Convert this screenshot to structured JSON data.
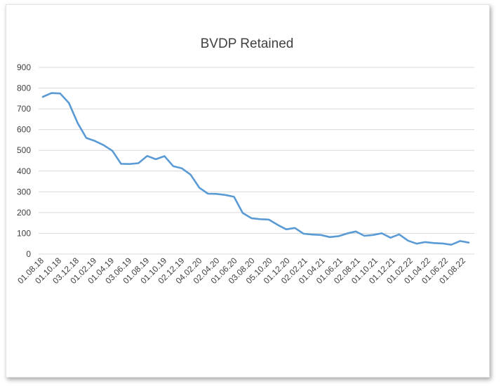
{
  "chart_data": {
    "type": "line",
    "title": "BVDP Retained",
    "xlabel": "",
    "ylabel": "",
    "ylim": [
      0,
      900
    ],
    "y_ticks": [
      0,
      100,
      200,
      300,
      400,
      500,
      600,
      700,
      800,
      900
    ],
    "grid": "horizontal",
    "legend": "none",
    "line_color": "#5b9bd5",
    "grid_color": "#d9d9d9",
    "x_tick_labels": [
      "01.08.18",
      "01.10.18",
      "03.12.18",
      "01.02.19",
      "01.04.19",
      "03.06.19",
      "01.08.19",
      "01.10.19",
      "02.12.19",
      "04.02.20",
      "02.04.20",
      "01.06.20",
      "03.08.20",
      "05.10.20",
      "01.12.20",
      "02.02.21",
      "01.04.21",
      "01.06.21",
      "02.08.21",
      "01.10.21",
      "01.12.21",
      "01.02.22",
      "01.04.22",
      "01.06.22",
      "01.08.22"
    ],
    "values": [
      758,
      776,
      774,
      728,
      632,
      560,
      545,
      525,
      498,
      435,
      434,
      438,
      473,
      457,
      472,
      424,
      413,
      383,
      320,
      291,
      290,
      285,
      276,
      198,
      173,
      168,
      166,
      141,
      119,
      126,
      98,
      94,
      92,
      82,
      86,
      99,
      109,
      88,
      92,
      100,
      79,
      95,
      65,
      50,
      58,
      53,
      51,
      45,
      63,
      55
    ]
  }
}
